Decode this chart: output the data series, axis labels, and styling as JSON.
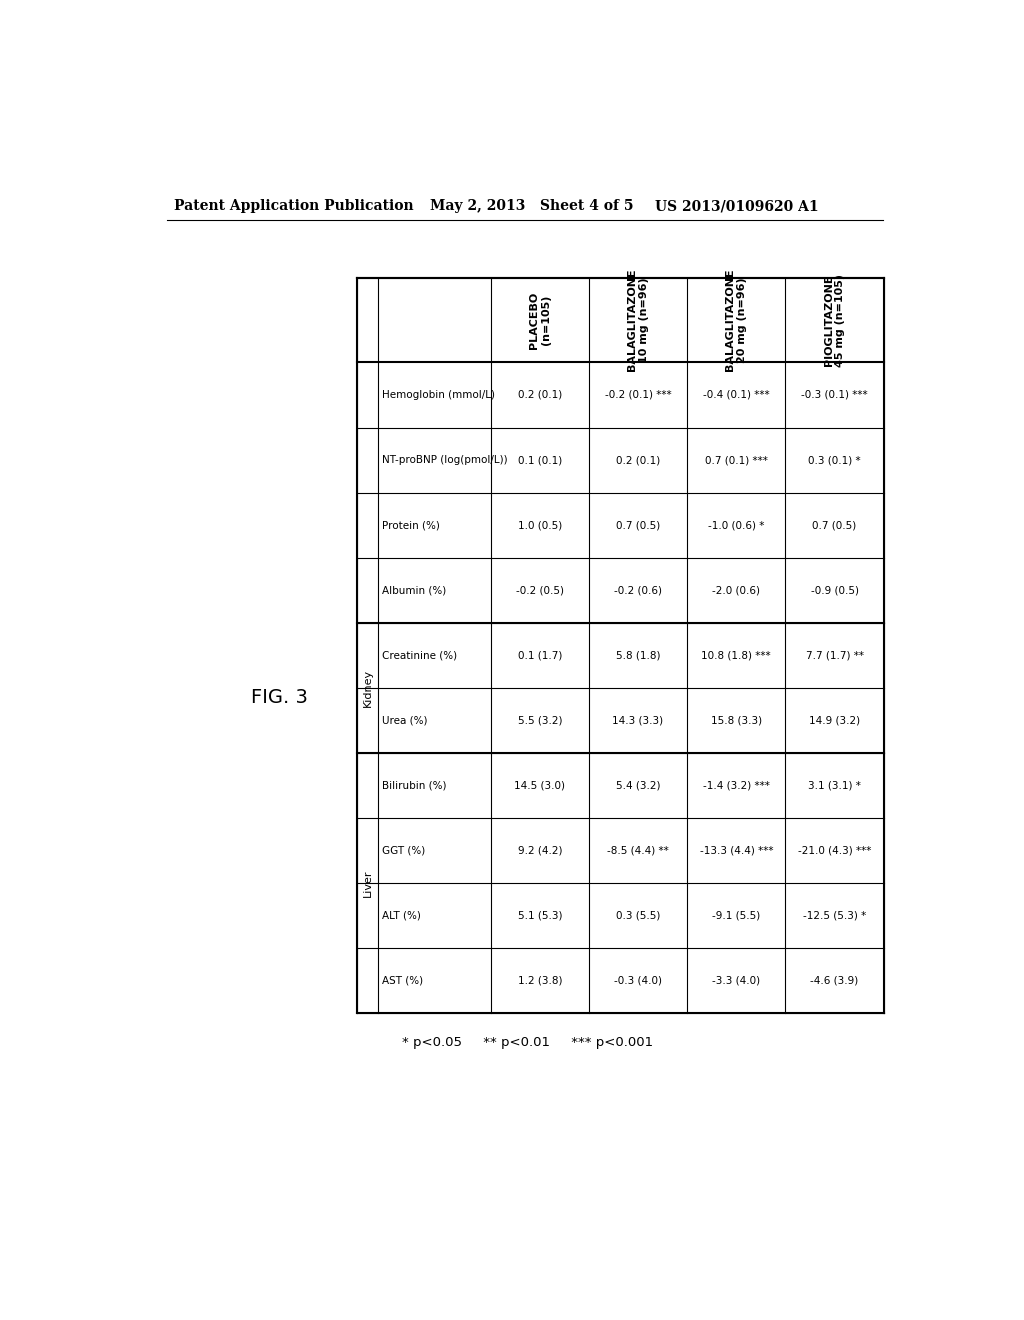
{
  "header_left": "Patent Application Publication",
  "header_mid": "May 2, 2013   Sheet 4 of 5",
  "header_right": "US 2013/0109620 A1",
  "fig_label": "FIG. 3",
  "col_headers": [
    "PLACEBO\n(n=105)",
    "BALAGLITAZONE\n10 mg (n=96)",
    "BALAGLITAZONE\n20 mg (n=96)",
    "PIOGLITAZONE\n45 mg (n=105)"
  ],
  "row_data": [
    {
      "group": "",
      "label": "Hemoglobin (mmol/L)",
      "values": [
        "0.2 (0.1)",
        "-0.2 (0.1) ***",
        "-0.4 (0.1) ***",
        "-0.3 (0.1) ***"
      ]
    },
    {
      "group": "",
      "label": "NT-proBNP (log(pmol/L))",
      "values": [
        "0.1 (0.1)",
        "0.2 (0.1)",
        "0.7 (0.1) ***",
        "0.3 (0.1) *"
      ]
    },
    {
      "group": "",
      "label": "Protein (%)",
      "values": [
        "1.0 (0.5)",
        "0.7 (0.5)",
        "-1.0 (0.6) *",
        "0.7 (0.5)"
      ]
    },
    {
      "group": "",
      "label": "Albumin (%)",
      "values": [
        "-0.2 (0.5)",
        "-0.2 (0.6)",
        "-2.0 (0.6)",
        "-0.9 (0.5)"
      ]
    },
    {
      "group": "Kidney",
      "label": "Creatinine (%)",
      "values": [
        "0.1 (1.7)",
        "5.8 (1.8)",
        "10.8 (1.8) ***",
        "7.7 (1.7) **"
      ]
    },
    {
      "group": "Kidney",
      "label": "Urea (%)",
      "values": [
        "5.5 (3.2)",
        "14.3 (3.3)",
        "15.8 (3.3)",
        "14.9 (3.2)"
      ]
    },
    {
      "group": "Liver",
      "label": "Bilirubin (%)",
      "values": [
        "14.5 (3.0)",
        "5.4 (3.2)",
        "-1.4 (3.2) ***",
        "3.1 (3.1) *"
      ]
    },
    {
      "group": "Liver",
      "label": "GGT (%)",
      "values": [
        "9.2 (4.2)",
        "-8.5 (4.4) **",
        "-13.3 (4.4) ***",
        "-21.0 (4.3) ***"
      ]
    },
    {
      "group": "Liver",
      "label": "ALT (%)",
      "values": [
        "5.1 (5.3)",
        "0.3 (5.5)",
        "-9.1 (5.5)",
        "-12.5 (5.3) *"
      ]
    },
    {
      "group": "Liver",
      "label": "AST (%)",
      "values": [
        "1.2 (3.8)",
        "-0.3 (4.0)",
        "-3.3 (4.0)",
        "-4.6 (3.9)"
      ]
    }
  ],
  "footnote": "* p<0.05     ** p<0.01     *** p<0.001",
  "background_color": "#ffffff",
  "text_color": "#000000"
}
